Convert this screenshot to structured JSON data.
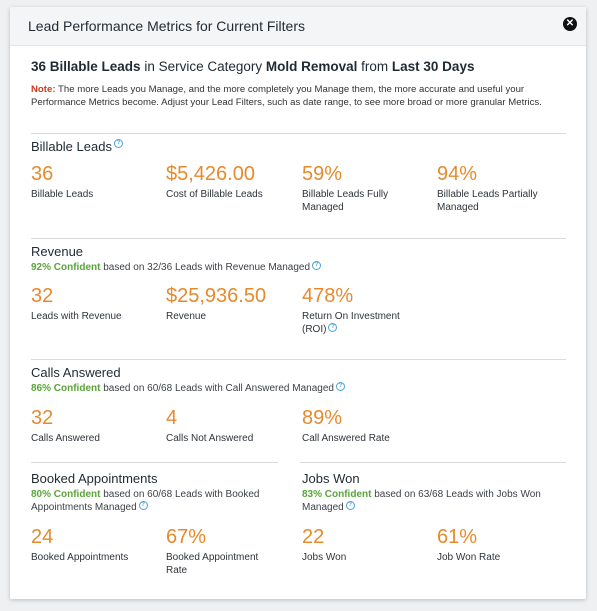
{
  "modal": {
    "title": "Lead Performance Metrics for Current Filters"
  },
  "summary": {
    "count_text": "36 Billable Leads",
    "mid1": " in Service Category ",
    "category": "Mold Removal",
    "mid2": " from ",
    "range": "Last 30 Days"
  },
  "note": {
    "label": "Note:",
    "text": " The more Leads you Manage, and the more completely you Manage them, the more accurate and useful your Performance Metrics become. Adjust your Lead Filters, such as date range, to see more broad or more granular Metrics."
  },
  "billable": {
    "title": "Billable Leads",
    "metrics": [
      {
        "value": "36",
        "label": "Billable Leads"
      },
      {
        "value": "$5,426.00",
        "label": "Cost of Billable Leads"
      },
      {
        "value": "59%",
        "label": "Billable Leads Fully Managed"
      },
      {
        "value": "94%",
        "label": "Billable Leads Partially Managed"
      }
    ]
  },
  "revenue": {
    "title": "Revenue",
    "confidence": "92% Confident",
    "basis": " based on 32/36 Leads with Revenue Managed",
    "metrics": [
      {
        "value": "32",
        "label": "Leads with Revenue"
      },
      {
        "value": "$25,936.50",
        "label": "Revenue"
      },
      {
        "value": "478%",
        "label": "Return On Investment (ROI)"
      }
    ]
  },
  "calls": {
    "title": "Calls Answered",
    "confidence": "86% Confident",
    "basis": " based on 60/68 Leads with Call Answered Managed",
    "metrics": [
      {
        "value": "32",
        "label": "Calls Answered"
      },
      {
        "value": "4",
        "label": "Calls Not Answered"
      },
      {
        "value": "89%",
        "label": "Call Answered Rate"
      }
    ]
  },
  "appointments": {
    "title": "Booked Appointments",
    "confidence": "80% Confident",
    "basis": " based on 60/68 Leads with Booked Appointments Managed",
    "metrics": [
      {
        "value": "24",
        "label": "Booked Appointments"
      },
      {
        "value": "67%",
        "label": "Booked Appointment Rate"
      }
    ]
  },
  "jobs": {
    "title": "Jobs Won",
    "confidence": "83% Confident",
    "basis": " based on 63/68 Leads with Jobs Won Managed",
    "metrics": [
      {
        "value": "22",
        "label": "Jobs Won"
      },
      {
        "value": "61%",
        "label": "Job Won Rate"
      }
    ]
  },
  "icons": {
    "help": "?",
    "close": "✕"
  },
  "colors": {
    "value": "#e68a2c",
    "confident": "#5aa53a",
    "note": "#d1381f",
    "help": "#4aa3d8"
  }
}
